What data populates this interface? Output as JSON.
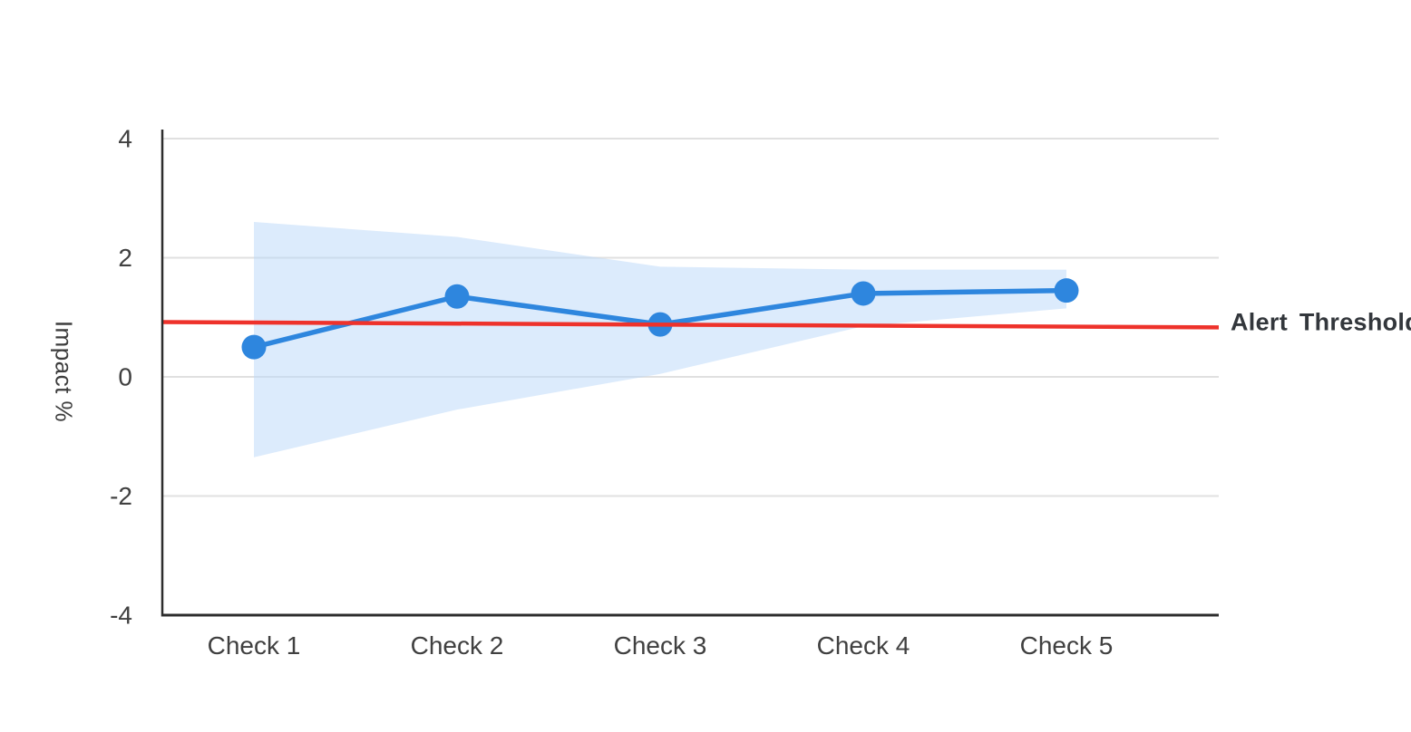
{
  "chart_data": {
    "type": "line",
    "title": "",
    "categories": [
      "Check 1",
      "Check 2",
      "Check 3",
      "Check 4",
      "Check 5"
    ],
    "series": [
      {
        "name": "Impact",
        "values": [
          0.5,
          1.35,
          0.88,
          1.4,
          1.45
        ]
      }
    ],
    "band": {
      "name": "confidence-band",
      "upper": [
        2.6,
        2.35,
        1.85,
        1.8,
        1.8
      ],
      "lower": [
        -1.35,
        -0.55,
        0.05,
        0.85,
        1.15
      ]
    },
    "threshold": {
      "label": "Alert Threshold",
      "start_value": 0.92,
      "end_value": 0.83
    },
    "xlabel": "",
    "ylabel": "Impact %",
    "ylim": [
      -4,
      4
    ],
    "yticks": [
      4,
      2,
      0,
      -2,
      -4
    ],
    "grid": true,
    "legend_position": "right of threshold line",
    "colors": {
      "line": "#2e86de",
      "point": "#2e86de",
      "band_fill": "#b9d7f9",
      "threshold": "#ee322b",
      "axis": "#2d2d2d",
      "gridline": "#e0e0e0",
      "tick_text": "#404040",
      "threshold_text": "#33373c"
    }
  }
}
